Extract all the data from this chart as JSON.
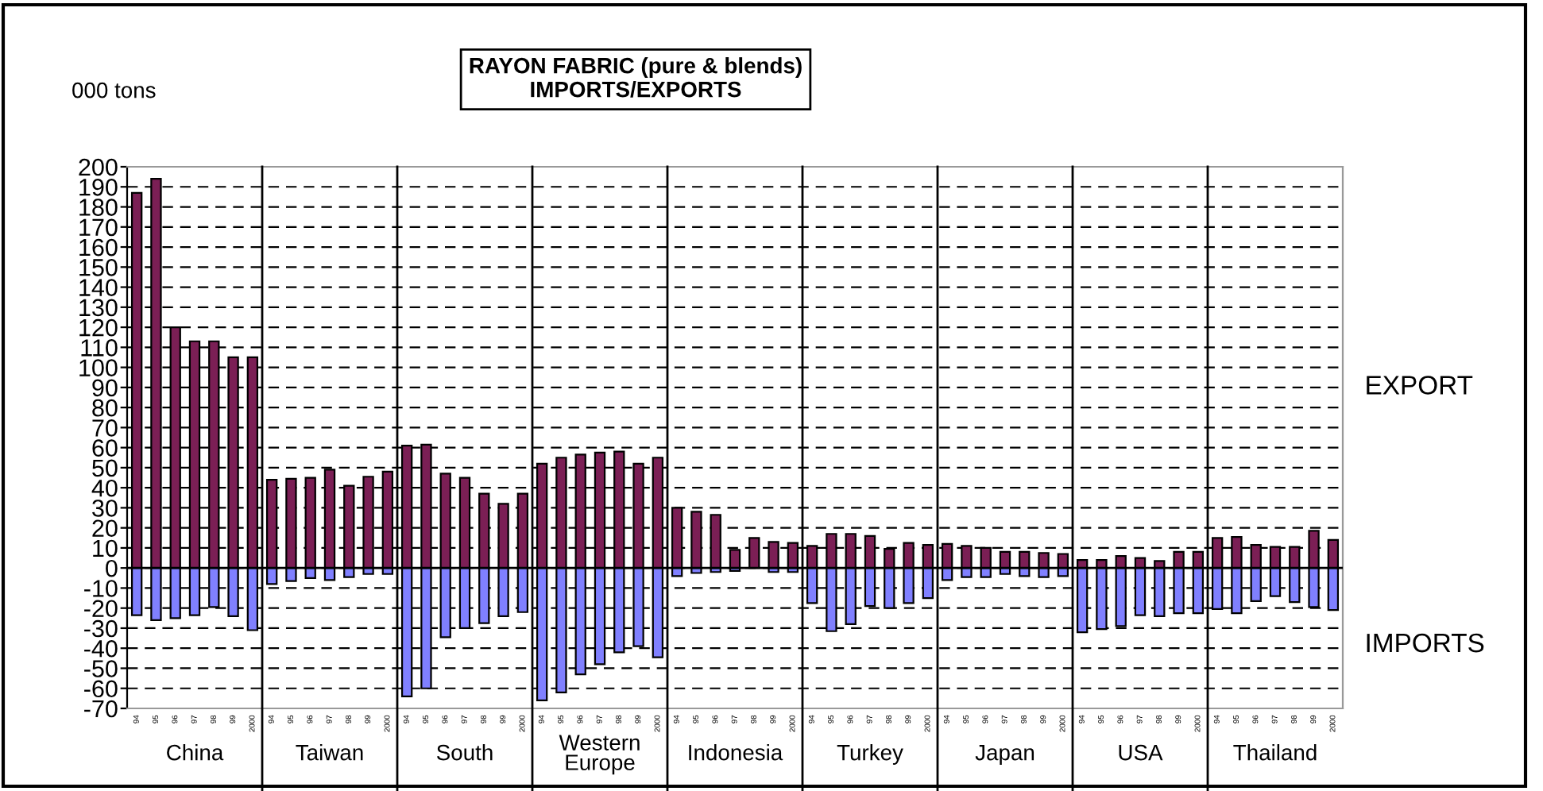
{
  "chart_data": {
    "type": "bar",
    "title": "RAYON FABRIC (pure & blends)\nIMPORTS/EXPORTS",
    "ylabel": "000 tons",
    "categories": [
      "94",
      "95",
      "96",
      "97",
      "98",
      "99",
      "2000",
      "94",
      "95",
      "96",
      "97",
      "98",
      "99",
      "2000",
      "94",
      "95",
      "96",
      "97",
      "98",
      "99",
      "2000",
      "94",
      "95",
      "96",
      "97",
      "98",
      "99",
      "2000",
      "94",
      "95",
      "96",
      "97",
      "98",
      "99",
      "2000",
      "94",
      "95",
      "96",
      "97",
      "98",
      "99",
      "2000",
      "94",
      "95",
      "96",
      "97",
      "98",
      "99",
      "2000",
      "94",
      "95",
      "96",
      "97",
      "98",
      "99",
      "2000",
      "94",
      "95",
      "96",
      "97",
      "98",
      "99",
      "2000"
    ],
    "annotations": [
      "China",
      "Taiwan",
      "South",
      "Western\nEurope",
      "Indonesia",
      "Turkey",
      "Japan",
      "USA",
      "Thailand"
    ],
    "stacked": true,
    "series": [
      {
        "name": "EXPORT",
        "color": "#7b1f55",
        "values": [
          187,
          194,
          120,
          113,
          113,
          105,
          105,
          44,
          44.5,
          45,
          49,
          41,
          45.5,
          48,
          61,
          61.5,
          47,
          45,
          37,
          32,
          37,
          52,
          55,
          56.5,
          57.5,
          58,
          52,
          55,
          30,
          28,
          26.5,
          9,
          15,
          13,
          12.5,
          11,
          17,
          17,
          16,
          9.5,
          12.5,
          11.5,
          12,
          11,
          10,
          8,
          8,
          7.5,
          7,
          4,
          4,
          6,
          5,
          3.5,
          8,
          8,
          15,
          15.5,
          11.5,
          10.5,
          10.5,
          18.5,
          14
        ]
      },
      {
        "name": "IMPORTS",
        "color": "#8080ff",
        "values": [
          -23.5,
          -26,
          -25,
          -23.5,
          -19.5,
          -24,
          -31,
          -8,
          -6.5,
          -5,
          -6,
          -4.5,
          -3,
          -3,
          -64,
          -60,
          -34.5,
          -30,
          -27.5,
          -24,
          -22,
          -66,
          -62,
          -53,
          -48,
          -42,
          -39,
          -44.5,
          -4,
          -2.5,
          -2,
          -1.5,
          null,
          -2,
          -2,
          -17.5,
          -31.5,
          -28,
          -19,
          -20,
          -17.5,
          -15,
          -6,
          -4.5,
          -4.5,
          -3,
          -4,
          -4.5,
          -4,
          -32,
          -30.5,
          -29,
          -23.5,
          -24,
          -22.5,
          -22.5,
          -20.5,
          -22.5,
          -16.5,
          -14,
          -17,
          -19.5,
          -21
        ]
      }
    ],
    "ylim": [
      -70,
      200
    ],
    "yticks": [
      -70,
      -60,
      -50,
      -40,
      -30,
      -20,
      -10,
      0,
      10,
      20,
      30,
      40,
      50,
      60,
      70,
      80,
      90,
      100,
      110,
      120,
      130,
      140,
      150,
      160,
      170,
      180,
      190,
      200
    ],
    "grid": "y",
    "legend": false
  }
}
